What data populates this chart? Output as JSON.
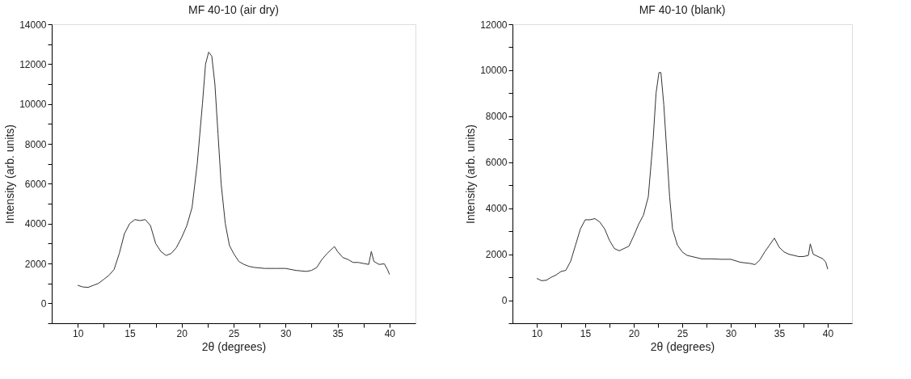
{
  "chart_data": [
    {
      "type": "line",
      "title": "MF 40-10 (air dry)",
      "xlabel": "2θ (degrees)",
      "ylabel": "Intensity (arb. units)",
      "xlim": [
        7.5,
        42.5
      ],
      "ylim": [
        -1000,
        14000
      ],
      "xticks": [
        10,
        {
          "value": 12.5,
          "label": null
        },
        15,
        {
          "value": 17.5,
          "label": null
        },
        20,
        {
          "value": 22.5,
          "label": null
        },
        25,
        {
          "value": 27.5,
          "label": null
        },
        30,
        {
          "value": 32.5,
          "label": null
        },
        35,
        {
          "value": 37.5,
          "label": null
        },
        40
      ],
      "yticks": [
        {
          "value": -1000,
          "label": null
        },
        0,
        {
          "value": 1000,
          "label": null
        },
        2000,
        {
          "value": 3000,
          "label": null
        },
        4000,
        {
          "value": 5000,
          "label": null
        },
        6000,
        {
          "value": 7000,
          "label": null
        },
        8000,
        {
          "value": 9000,
          "label": null
        },
        10000,
        {
          "value": 11000,
          "label": null
        },
        12000,
        {
          "value": 13000,
          "label": null
        },
        14000
      ],
      "grid": false,
      "legend": false,
      "marker": "none",
      "line_style": "solid",
      "series": [
        {
          "color": "#333333",
          "x": [
            10,
            10.5,
            11,
            11.5,
            12,
            12.5,
            13,
            13.5,
            14,
            14.5,
            15,
            15.5,
            16,
            16.5,
            17,
            17.5,
            18,
            18.5,
            19,
            19.5,
            20,
            20.5,
            21,
            21.5,
            22,
            22.3,
            22.6,
            22.9,
            23.2,
            23.5,
            23.8,
            24.2,
            24.6,
            25,
            25.5,
            26,
            26.5,
            27,
            28,
            29,
            30,
            31,
            32,
            32.5,
            33,
            33.5,
            34,
            34.7,
            35,
            35.5,
            36,
            36.5,
            37,
            37.5,
            38,
            38.25,
            38.5,
            39,
            39.5,
            39.8,
            40
          ],
          "values": [
            900,
            820,
            800,
            900,
            1000,
            1200,
            1400,
            1700,
            2500,
            3500,
            4000,
            4200,
            4150,
            4200,
            3900,
            3000,
            2600,
            2400,
            2500,
            2800,
            3300,
            3900,
            4800,
            7000,
            10000,
            12000,
            12600,
            12400,
            11000,
            8500,
            6000,
            4000,
            2900,
            2500,
            2100,
            1950,
            1850,
            1800,
            1750,
            1750,
            1750,
            1650,
            1600,
            1650,
            1800,
            2200,
            2500,
            2850,
            2600,
            2300,
            2200,
            2050,
            2050,
            2000,
            1950,
            2600,
            2100,
            1950,
            1980,
            1700,
            1450
          ]
        }
      ]
    },
    {
      "type": "line",
      "title": "MF 40-10 (blank)",
      "xlabel": "2θ (degrees)",
      "ylabel": "Intensity (arb. units)",
      "xlim": [
        7.5,
        42.5
      ],
      "ylim": [
        -1000,
        12000
      ],
      "xticks": [
        10,
        {
          "value": 12.5,
          "label": null
        },
        15,
        {
          "value": 17.5,
          "label": null
        },
        20,
        {
          "value": 22.5,
          "label": null
        },
        25,
        {
          "value": 27.5,
          "label": null
        },
        30,
        {
          "value": 32.5,
          "label": null
        },
        35,
        {
          "value": 37.5,
          "label": null
        },
        40
      ],
      "yticks": [
        {
          "value": -1000,
          "label": null
        },
        0,
        {
          "value": 1000,
          "label": null
        },
        2000,
        {
          "value": 3000,
          "label": null
        },
        4000,
        {
          "value": 5000,
          "label": null
        },
        6000,
        {
          "value": 7000,
          "label": null
        },
        8000,
        {
          "value": 9000,
          "label": null
        },
        10000,
        {
          "value": 11000,
          "label": null
        },
        12000
      ],
      "grid": false,
      "legend": false,
      "marker": "none",
      "line_style": "solid",
      "series": [
        {
          "color": "#333333",
          "x": [
            10,
            10.5,
            11,
            11.5,
            12,
            12.5,
            13,
            13.5,
            14,
            14.5,
            15,
            15.5,
            16,
            16.5,
            17,
            17.5,
            18,
            18.5,
            19,
            19.5,
            20,
            20.5,
            21,
            21.5,
            22,
            22.3,
            22.6,
            22.8,
            23.1,
            23.4,
            23.7,
            24,
            24.5,
            25,
            25.5,
            26,
            27,
            28,
            29,
            30,
            31,
            32,
            32.5,
            33,
            33.5,
            34,
            34.5,
            35,
            35.5,
            36,
            37,
            37.5,
            38,
            38.2,
            38.5,
            39,
            39.5,
            39.8,
            40
          ],
          "values": [
            950,
            850,
            870,
            1000,
            1100,
            1250,
            1300,
            1700,
            2400,
            3100,
            3500,
            3500,
            3550,
            3400,
            3100,
            2600,
            2250,
            2150,
            2250,
            2350,
            2800,
            3300,
            3700,
            4500,
            7000,
            9000,
            9900,
            9900,
            8500,
            6500,
            4500,
            3100,
            2400,
            2100,
            1950,
            1900,
            1800,
            1800,
            1780,
            1780,
            1650,
            1600,
            1550,
            1750,
            2100,
            2400,
            2700,
            2300,
            2100,
            2000,
            1900,
            1900,
            1950,
            2450,
            2000,
            1900,
            1800,
            1650,
            1350
          ]
        }
      ]
    }
  ]
}
